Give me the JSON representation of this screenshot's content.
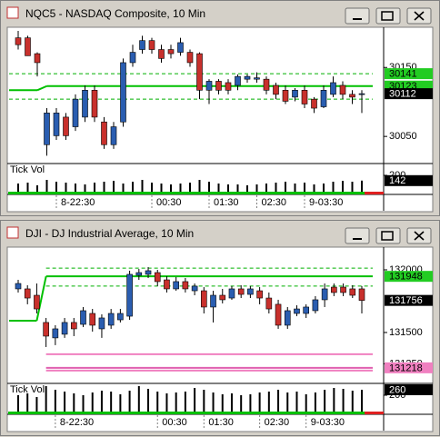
{
  "chart_data": [
    {
      "type": "candlestick",
      "title": "NQC5 - NASDAQ Composite, 10 Min",
      "up_color": "#2a5db0",
      "down_color": "#c8302c",
      "categories": [
        null,
        null,
        null,
        null,
        "8-22:30",
        null,
        null,
        null,
        null,
        null,
        null,
        null,
        null,
        null,
        "00:30",
        null,
        null,
        null,
        null,
        null,
        "01:30",
        null,
        null,
        null,
        null,
        "02:30",
        null,
        null,
        null,
        null,
        "9-03:30",
        null,
        null,
        null,
        null,
        null,
        null
      ],
      "open": [
        30193,
        30193,
        30170,
        30038,
        30051,
        30078,
        30064,
        30078,
        30117,
        30071,
        30038,
        30071,
        30157,
        30176,
        30189,
        30176,
        30176,
        30172,
        30172,
        30170,
        30117,
        30130,
        30128,
        30124,
        30133,
        30133,
        30133,
        30124,
        30117,
        30107,
        30117,
        30104,
        30093,
        30111,
        30124,
        30111,
        30111
      ],
      "high": [
        30203,
        30196,
        30172,
        30091,
        30091,
        30084,
        30111,
        30124,
        30124,
        30078,
        30071,
        30163,
        30183,
        30196,
        30193,
        30183,
        30183,
        30193,
        30176,
        30172,
        30133,
        30133,
        30133,
        30140,
        30140,
        30143,
        30137,
        30128,
        30124,
        30120,
        30124,
        30107,
        30124,
        30137,
        30130,
        30117,
        30117
      ],
      "low": [
        30176,
        30167,
        30137,
        30022,
        30045,
        30045,
        30058,
        30071,
        30071,
        30032,
        30032,
        30064,
        30151,
        30170,
        30170,
        30157,
        30163,
        30167,
        30151,
        30104,
        30097,
        30111,
        30111,
        30117,
        30128,
        30128,
        30111,
        30104,
        30097,
        30101,
        30091,
        30084,
        30091,
        30107,
        30104,
        30097,
        30084
      ],
      "close": [
        30183,
        30167,
        30157,
        30084,
        30084,
        30051,
        30104,
        30117,
        30078,
        30038,
        30064,
        30157,
        30172,
        30189,
        30176,
        30163,
        30170,
        30186,
        30157,
        30117,
        30130,
        30117,
        30117,
        30137,
        30137,
        30135,
        30117,
        30111,
        30101,
        30117,
        30097,
        30091,
        30117,
        30128,
        30111,
        30107,
        30112
      ],
      "ylim": [
        30012,
        30207
      ],
      "yticks": [
        30050,
        30150
      ],
      "levels": [
        {
          "value": 30141,
          "color": "#00b000",
          "style": "dashed"
        },
        {
          "value": 30117,
          "color": "#00c000",
          "style": "solid",
          "to": 2
        },
        {
          "value": 30123,
          "color": "#00c000",
          "style": "solid",
          "from": 3
        },
        {
          "value": 30104,
          "color": "#00b000",
          "style": "dashed"
        }
      ],
      "price_labels": [
        {
          "value": 30141,
          "color": "#22cc22",
          "text_color": "#000000"
        },
        {
          "value": 30123,
          "color": "#22cc22",
          "text_color": "#000000"
        },
        {
          "value": 30112,
          "color": "#000000",
          "text_color": "#ffffff"
        }
      ],
      "volume": {
        "label": "Tick Vol",
        "ylim": [
          0,
          330
        ],
        "yticks": [
          200
        ],
        "values": [
          110,
          120,
          90,
          150,
          130,
          120,
          110,
          100,
          120,
          130,
          140,
          110,
          130,
          150,
          120,
          110,
          100,
          110,
          120,
          150,
          130,
          110,
          100,
          100,
          90,
          100,
          110,
          120,
          130,
          110,
          120,
          100,
          110,
          130,
          140,
          130,
          142
        ]
      }
    },
    {
      "type": "candlestick",
      "title": "DJI - DJ Industrial Average, 10 Min",
      "up_color": "#2a5db0",
      "down_color": "#c8302c",
      "categories": [
        null,
        null,
        null,
        null,
        "8-22:30",
        null,
        null,
        null,
        null,
        null,
        null,
        null,
        null,
        null,
        null,
        "00:30",
        null,
        null,
        null,
        null,
        "01:30",
        null,
        null,
        null,
        null,
        null,
        "02:30",
        null,
        null,
        null,
        null,
        "9-03:30",
        null,
        null,
        null,
        null,
        null,
        null
      ],
      "open": [
        131848,
        131848,
        131797,
        131580,
        131457,
        131486,
        131580,
        131565,
        131652,
        131529,
        131558,
        131601,
        131630,
        131956,
        131964,
        131978,
        131920,
        131848,
        131906,
        131833,
        131833,
        131703,
        131797,
        131775,
        131848,
        131804,
        131833,
        131775,
        131725,
        131558,
        131652,
        131652,
        131674,
        131761,
        131862,
        131862,
        131848,
        131848
      ],
      "high": [
        131920,
        131877,
        131891,
        131616,
        131558,
        131616,
        131616,
        131703,
        131688,
        131645,
        131688,
        131688,
        131993,
        132007,
        132022,
        132000,
        131949,
        131942,
        131935,
        131891,
        131862,
        131833,
        131848,
        131870,
        131877,
        131870,
        131862,
        131819,
        131761,
        131703,
        131717,
        131725,
        131790,
        131891,
        131891,
        131891,
        131877,
        131870
      ],
      "low": [
        131819,
        131725,
        131652,
        131384,
        131399,
        131457,
        131471,
        131543,
        131507,
        131457,
        131529,
        131580,
        131601,
        131920,
        131935,
        131870,
        131819,
        131833,
        131819,
        131797,
        131652,
        131580,
        131732,
        131761,
        131775,
        131775,
        131725,
        131652,
        131529,
        131529,
        131630,
        131616,
        131652,
        131703,
        131790,
        131790,
        131775,
        131652
      ],
      "close": [
        131891,
        131775,
        131688,
        131471,
        131529,
        131580,
        131529,
        131674,
        131558,
        131616,
        131652,
        131652,
        131964,
        131978,
        131993,
        131906,
        131848,
        131906,
        131848,
        131870,
        131703,
        131797,
        131761,
        131848,
        131804,
        131848,
        131775,
        131688,
        131558,
        131674,
        131688,
        131703,
        131761,
        131848,
        131819,
        131819,
        131797,
        131756
      ],
      "ylim": [
        131101,
        132174
      ],
      "yticks": [
        131250,
        131500,
        132000
      ],
      "levels": [
        {
          "value": 132014,
          "color": "#00b000",
          "style": "dashed",
          "from": 3
        },
        {
          "value": 131594,
          "color": "#00c000",
          "style": "solid",
          "to": 2
        },
        {
          "value": 131948,
          "color": "#00c000",
          "style": "solid",
          "from": 3
        },
        {
          "value": 131870,
          "color": "#00b000",
          "style": "dashed",
          "from": 3
        },
        {
          "value": 131327,
          "color": "#f080c0",
          "style": "solid",
          "from": 3
        },
        {
          "value": 131218,
          "color": "#e060b0",
          "style": "solid",
          "from": 3
        },
        {
          "value": 131196,
          "color": "#f080c0",
          "style": "solid",
          "from": 3
        }
      ],
      "price_labels": [
        {
          "value": 131948,
          "color": "#22cc22",
          "text_color": "#000000"
        },
        {
          "value": 131756,
          "color": "#000000",
          "text_color": "#ffffff"
        },
        {
          "value": 131218,
          "color": "#f080c0",
          "text_color": "#000000"
        }
      ],
      "volume": {
        "label": "Tick Vol",
        "ylim": [
          0,
          330
        ],
        "yticks": [
          200
        ],
        "values": [
          200,
          220,
          180,
          300,
          260,
          240,
          220,
          200,
          230,
          250,
          240,
          210,
          250,
          300,
          270,
          240,
          220,
          230,
          240,
          280,
          260,
          230,
          210,
          220,
          200,
          210,
          230,
          240,
          260,
          230,
          240,
          210,
          230,
          260,
          280,
          270,
          250,
          260
        ]
      }
    }
  ]
}
